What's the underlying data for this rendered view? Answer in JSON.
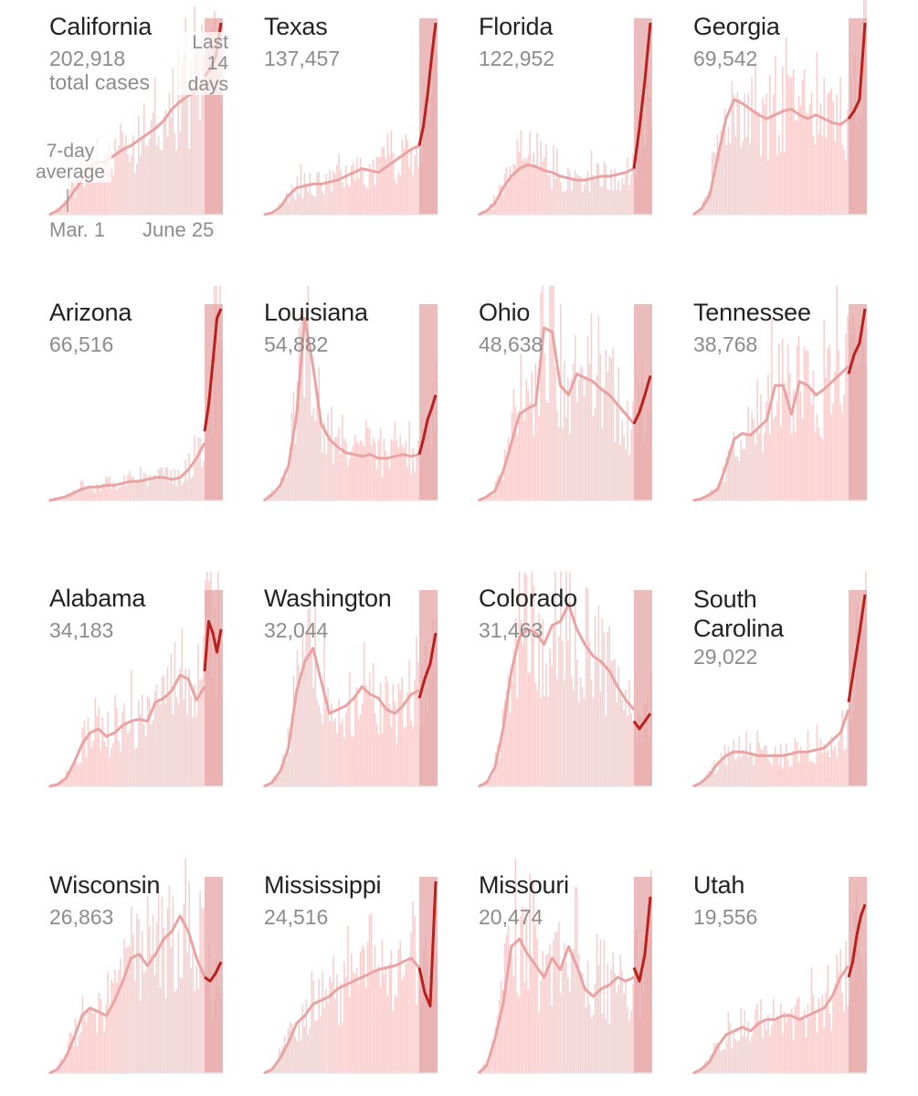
{
  "annotations": {
    "total_cases": "total cases",
    "seven_day_line1": "7-day",
    "seven_day_line2": "average",
    "last14_line1": "Last 14",
    "last14_line2": "days",
    "start_label": "Mar. 1",
    "end_label": "June 25"
  },
  "colors": {
    "bars": "#f7cfcf",
    "shade": "#e6a6a6",
    "avg_line": "#eaa3a3",
    "recent_line": "#b8211e",
    "baseline": "#e6e6e6"
  },
  "chart_data": [
    {
      "type": "area",
      "state": "California",
      "total_cases": "202,918",
      "avg": [
        0,
        2,
        6,
        12,
        18,
        25,
        27,
        28,
        31,
        34,
        36,
        39,
        42,
        45,
        49,
        55,
        59,
        62,
        64,
        70
      ],
      "recent": [
        72,
        76,
        82,
        100
      ]
    },
    {
      "type": "area",
      "state": "Texas",
      "total_cases": "137,457",
      "avg": [
        0,
        1,
        4,
        10,
        14,
        15,
        16,
        16,
        17,
        18,
        20,
        22,
        24,
        23,
        22,
        25,
        28,
        31,
        34,
        36
      ],
      "recent": [
        36,
        46,
        62,
        82,
        100
      ]
    },
    {
      "type": "area",
      "state": "Florida",
      "total_cases": "122,952",
      "avg": [
        0,
        2,
        6,
        14,
        20,
        24,
        26,
        25,
        23,
        22,
        20,
        19,
        18,
        18,
        19,
        20,
        20,
        21,
        22,
        24
      ],
      "recent": [
        24,
        45,
        70,
        100
      ]
    },
    {
      "type": "area",
      "state": "Georgia",
      "total_cases": "69,542",
      "avg": [
        0,
        3,
        10,
        30,
        50,
        60,
        58,
        55,
        52,
        50,
        52,
        54,
        55,
        52,
        50,
        52,
        50,
        48,
        47,
        50
      ],
      "recent": [
        50,
        54,
        60,
        100
      ]
    },
    {
      "type": "area",
      "state": "Arizona",
      "total_cases": "66,516",
      "avg": [
        0,
        1,
        2,
        4,
        6,
        7,
        7,
        8,
        8,
        9,
        10,
        10,
        11,
        12,
        12,
        11,
        12,
        16,
        22,
        30
      ],
      "recent": [
        36,
        50,
        72,
        95,
        100
      ]
    },
    {
      "type": "area",
      "state": "Louisiana",
      "total_cases": "54,882",
      "avg": [
        0,
        3,
        8,
        18,
        45,
        95,
        70,
        40,
        32,
        28,
        25,
        24,
        23,
        24,
        22,
        22,
        23,
        24,
        23,
        24
      ],
      "recent": [
        24,
        32,
        42,
        48,
        55
      ]
    },
    {
      "type": "area",
      "state": "Ohio",
      "total_cases": "48,638",
      "avg": [
        0,
        2,
        5,
        15,
        30,
        45,
        48,
        50,
        90,
        88,
        60,
        55,
        66,
        64,
        62,
        58,
        55,
        50,
        45,
        40
      ],
      "recent": [
        40,
        46,
        55,
        65
      ]
    },
    {
      "type": "area",
      "state": "Tennessee",
      "total_cases": "38,768",
      "avg": [
        0,
        1,
        3,
        6,
        18,
        32,
        35,
        34,
        38,
        42,
        60,
        60,
        45,
        62,
        60,
        55,
        58,
        62,
        66,
        70
      ],
      "recent": [
        66,
        76,
        82,
        100
      ]
    },
    {
      "type": "area",
      "state": "Alabama",
      "total_cases": "34,183",
      "avg": [
        0,
        1,
        4,
        12,
        22,
        28,
        30,
        26,
        28,
        32,
        34,
        35,
        34,
        44,
        46,
        50,
        58,
        56,
        45,
        52
      ],
      "recent": [
        60,
        86,
        80,
        70,
        82
      ]
    },
    {
      "type": "area",
      "state": "Washington",
      "total_cases": "32,044",
      "avg": [
        0,
        2,
        8,
        20,
        50,
        65,
        72,
        55,
        38,
        40,
        42,
        46,
        52,
        48,
        46,
        40,
        38,
        42,
        48,
        50
      ],
      "recent": [
        46,
        56,
        64,
        80
      ]
    },
    {
      "type": "area",
      "state": "Colorado",
      "total_cases": "31,463",
      "avg": [
        0,
        2,
        10,
        30,
        60,
        78,
        82,
        80,
        74,
        84,
        86,
        95,
        82,
        74,
        68,
        65,
        60,
        52,
        45,
        40
      ],
      "recent": [
        34,
        30,
        34,
        38
      ]
    },
    {
      "type": "area",
      "state": "South Carolina",
      "total_cases": "29,022",
      "avg": [
        0,
        2,
        6,
        12,
        16,
        18,
        18,
        17,
        16,
        16,
        16,
        16,
        17,
        18,
        18,
        19,
        20,
        24,
        28,
        40
      ],
      "recent": [
        44,
        62,
        80,
        100
      ]
    },
    {
      "type": "area",
      "state": "Wisconsin",
      "total_cases": "26,863",
      "avg": [
        0,
        2,
        8,
        18,
        30,
        34,
        32,
        30,
        38,
        48,
        60,
        62,
        56,
        62,
        70,
        74,
        82,
        74,
        60,
        50
      ],
      "recent": [
        50,
        48,
        52,
        58
      ]
    },
    {
      "type": "area",
      "state": "Mississippi",
      "total_cases": "24,516",
      "avg": [
        0,
        2,
        8,
        16,
        26,
        30,
        36,
        38,
        40,
        44,
        46,
        48,
        50,
        52,
        54,
        55,
        56,
        58,
        60,
        55
      ],
      "recent": [
        55,
        42,
        35,
        100
      ]
    },
    {
      "type": "area",
      "state": "Missouri",
      "total_cases": "20,474",
      "avg": [
        0,
        4,
        18,
        36,
        66,
        70,
        62,
        56,
        50,
        60,
        54,
        66,
        56,
        44,
        40,
        44,
        46,
        50,
        48,
        50
      ],
      "recent": [
        55,
        48,
        62,
        92
      ]
    },
    {
      "type": "area",
      "state": "Utah",
      "total_cases": "19,556",
      "avg": [
        0,
        2,
        6,
        14,
        20,
        22,
        24,
        22,
        26,
        28,
        28,
        30,
        30,
        28,
        30,
        32,
        34,
        40,
        50,
        56
      ],
      "recent": [
        50,
        58,
        72,
        82,
        88
      ]
    }
  ]
}
